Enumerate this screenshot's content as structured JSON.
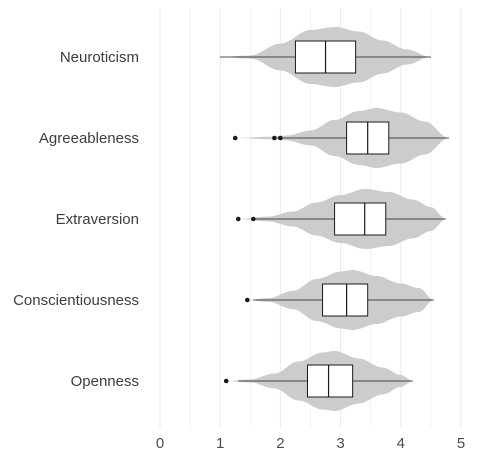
{
  "chart_data": {
    "type": "violin+boxplot",
    "orientation": "horizontal",
    "xlim": [
      0,
      5
    ],
    "x_ticks": [
      "0",
      "1",
      "2",
      "3",
      "4",
      "5"
    ],
    "grid": "vertical major and minor lines",
    "colors": {
      "violin_fill": "#cccccc",
      "box_fill": "#ffffff",
      "box_stroke": "#1a1a1a",
      "outlier": "#1a1a1a",
      "grid": "#ebebeb"
    },
    "categories": [
      "Neuroticism",
      "Agreeableness",
      "Extraversion",
      "Conscientiousness",
      "Openness"
    ],
    "series": [
      {
        "name": "Neuroticism",
        "whisker_low": 1.0,
        "q1": 2.25,
        "median": 2.75,
        "q3": 3.25,
        "whisker_high": 4.5,
        "outliers": [],
        "violin_min": 1.0,
        "violin_max": 4.5,
        "density": [
          [
            1.0,
            0.0
          ],
          [
            1.5,
            0.05
          ],
          [
            2.0,
            0.45
          ],
          [
            2.5,
            0.9
          ],
          [
            2.9,
            1.0
          ],
          [
            3.3,
            0.85
          ],
          [
            3.7,
            0.55
          ],
          [
            4.1,
            0.25
          ],
          [
            4.5,
            0.0
          ]
        ]
      },
      {
        "name": "Agreeableness",
        "whisker_low": 1.95,
        "q1": 3.1,
        "median": 3.45,
        "q3": 3.8,
        "whisker_high": 4.8,
        "outliers": [
          1.25,
          1.9,
          2.0
        ],
        "violin_min": 1.25,
        "violin_max": 4.8,
        "density": [
          [
            1.25,
            0.0
          ],
          [
            1.8,
            0.04
          ],
          [
            2.1,
            0.08
          ],
          [
            2.5,
            0.25
          ],
          [
            2.9,
            0.6
          ],
          [
            3.3,
            0.9
          ],
          [
            3.6,
            1.0
          ],
          [
            4.0,
            0.85
          ],
          [
            4.4,
            0.55
          ],
          [
            4.8,
            0.0
          ]
        ]
      },
      {
        "name": "Extraversion",
        "whisker_low": 1.55,
        "q1": 2.9,
        "median": 3.4,
        "q3": 3.75,
        "whisker_high": 4.75,
        "outliers": [
          1.3,
          1.55
        ],
        "violin_min": 1.3,
        "violin_max": 4.75,
        "density": [
          [
            1.3,
            0.0
          ],
          [
            1.8,
            0.08
          ],
          [
            2.2,
            0.25
          ],
          [
            2.6,
            0.55
          ],
          [
            3.0,
            0.8
          ],
          [
            3.4,
            1.0
          ],
          [
            3.8,
            0.9
          ],
          [
            4.2,
            0.65
          ],
          [
            4.5,
            0.4
          ],
          [
            4.75,
            0.0
          ]
        ]
      },
      {
        "name": "Conscientiousness",
        "whisker_low": 1.55,
        "q1": 2.7,
        "median": 3.1,
        "q3": 3.45,
        "whisker_high": 4.55,
        "outliers": [
          1.45
        ],
        "violin_min": 1.45,
        "violin_max": 4.55,
        "density": [
          [
            1.45,
            0.0
          ],
          [
            1.8,
            0.06
          ],
          [
            2.2,
            0.3
          ],
          [
            2.6,
            0.7
          ],
          [
            3.0,
            0.95
          ],
          [
            3.2,
            1.0
          ],
          [
            3.6,
            0.8
          ],
          [
            4.0,
            0.55
          ],
          [
            4.3,
            0.4
          ],
          [
            4.55,
            0.0
          ]
        ]
      },
      {
        "name": "Openness",
        "whisker_low": 1.3,
        "q1": 2.45,
        "median": 2.8,
        "q3": 3.2,
        "whisker_high": 4.2,
        "outliers": [
          1.1
        ],
        "violin_min": 1.1,
        "violin_max": 4.2,
        "density": [
          [
            1.1,
            0.0
          ],
          [
            1.5,
            0.05
          ],
          [
            1.9,
            0.25
          ],
          [
            2.3,
            0.65
          ],
          [
            2.7,
            0.95
          ],
          [
            2.9,
            1.0
          ],
          [
            3.3,
            0.75
          ],
          [
            3.7,
            0.45
          ],
          [
            4.0,
            0.2
          ],
          [
            4.2,
            0.0
          ]
        ]
      }
    ]
  }
}
